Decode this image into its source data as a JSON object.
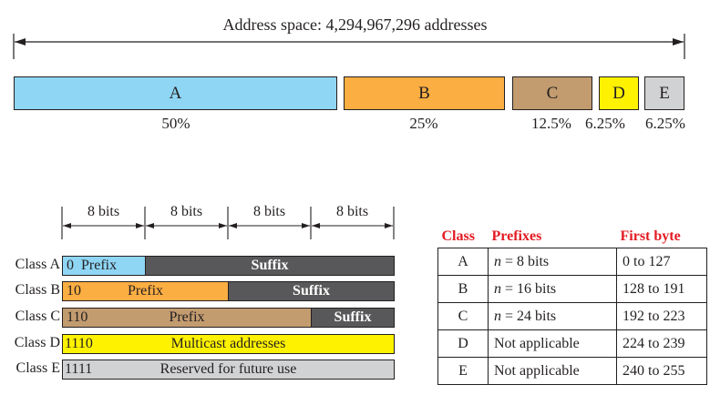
{
  "address_space": {
    "label": "Address space: 4,294,967,296 addresses"
  },
  "classes_bar": [
    {
      "name": "A",
      "percent": "50%",
      "color": "#8fd6f5"
    },
    {
      "name": "B",
      "percent": "25%",
      "color": "#fbae42"
    },
    {
      "name": "C",
      "percent": "12.5%",
      "color": "#c29b6f"
    },
    {
      "name": "D",
      "percent": "6.25%",
      "color": "#fff200"
    },
    {
      "name": "E",
      "percent": "6.25%",
      "color": "#d1d2d4"
    }
  ],
  "bits_labels": [
    "8 bits",
    "8 bits",
    "8 bits",
    "8 bits"
  ],
  "formats": [
    {
      "label": "Class A",
      "prefix_bits": "0",
      "prefix_text": "Prefix",
      "suffix_text": "Suffix",
      "color": "#8fd6f5"
    },
    {
      "label": "Class B",
      "prefix_bits": "10",
      "prefix_text": "Prefix",
      "suffix_text": "Suffix",
      "color": "#fbae42"
    },
    {
      "label": "Class C",
      "prefix_bits": "110",
      "prefix_text": "Prefix",
      "suffix_text": "Suffix",
      "color": "#c29b6f"
    },
    {
      "label": "Class D",
      "prefix_bits": "1110",
      "text": "Multicast addresses",
      "color": "#fff200"
    },
    {
      "label": "Class E",
      "prefix_bits": "1111",
      "text": "Reserved for future use",
      "color": "#d1d2d4"
    }
  ],
  "table": {
    "headers": [
      "Class",
      "Prefixes",
      "First byte"
    ],
    "rows": [
      {
        "class": "A",
        "prefix_var": "n",
        "prefix_rest": " = 8 bits",
        "first_byte": "0 to 127"
      },
      {
        "class": "B",
        "prefix_var": "n",
        "prefix_rest": " = 16 bits",
        "first_byte": "128 to 191"
      },
      {
        "class": "C",
        "prefix_var": "n",
        "prefix_rest": " = 24 bits",
        "first_byte": "192 to 223"
      },
      {
        "class": "D",
        "prefix_text": "Not applicable",
        "first_byte": "224 to 239"
      },
      {
        "class": "E",
        "prefix_text": "Not applicable",
        "first_byte": "240 to 255"
      }
    ],
    "header_color": "#e31b23"
  }
}
